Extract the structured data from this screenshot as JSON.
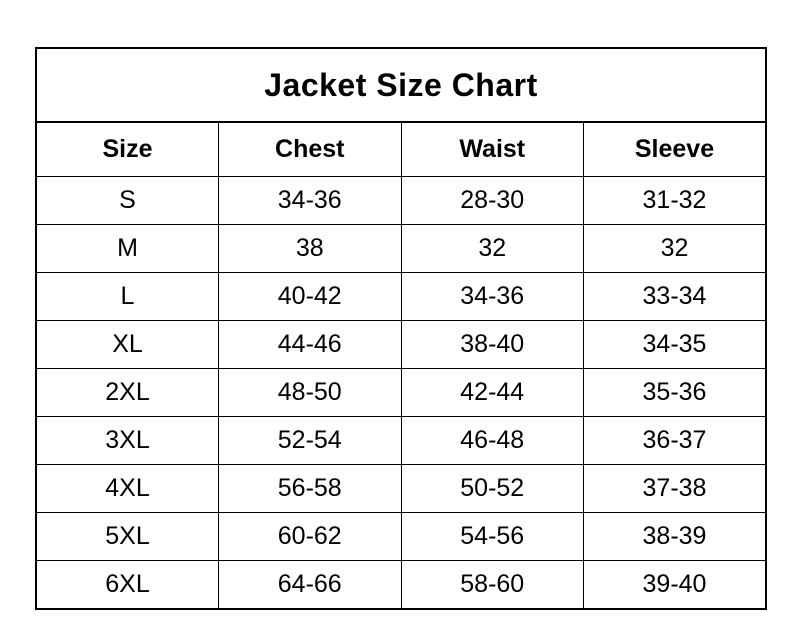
{
  "chart_data": {
    "type": "table",
    "title": "Jacket Size Chart",
    "columns": [
      "Size",
      "Chest",
      "Waist",
      "Sleeve"
    ],
    "rows": [
      [
        "S",
        "34-36",
        "28-30",
        "31-32"
      ],
      [
        "M",
        "38",
        "32",
        "32"
      ],
      [
        "L",
        "40-42",
        "34-36",
        "33-34"
      ],
      [
        "XL",
        "44-46",
        "38-40",
        "34-35"
      ],
      [
        "2XL",
        "48-50",
        "42-44",
        "35-36"
      ],
      [
        "3XL",
        "52-54",
        "46-48",
        "36-37"
      ],
      [
        "4XL",
        "56-58",
        "50-52",
        "37-38"
      ],
      [
        "5XL",
        "60-62",
        "54-56",
        "38-39"
      ],
      [
        "6XL",
        "64-66",
        "58-60",
        "39-40"
      ]
    ],
    "layout": {
      "grid": true,
      "border_color": "#000000",
      "text_color": "#000000",
      "background": "#ffffff",
      "title_position": "top-merged-row",
      "legend": "none"
    }
  }
}
